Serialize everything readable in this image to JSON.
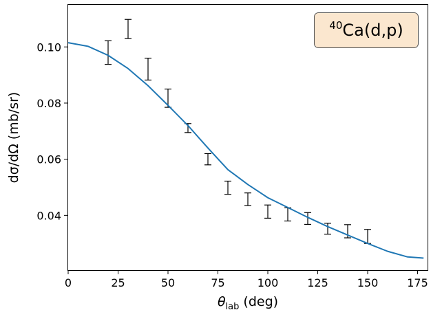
{
  "chart_data": {
    "type": "scatter",
    "xlabel": {
      "symbol": "θ",
      "sub": "lab",
      "unit": "(deg)"
    },
    "ylabel": "dσ/dΩ (mb/sr)",
    "xlim": [
      0,
      180
    ],
    "ylim": [
      0.0205,
      0.115
    ],
    "x_ticks": [
      0,
      25,
      50,
      75,
      100,
      125,
      150,
      175
    ],
    "y_ticks": [
      0.04,
      0.06,
      0.08,
      0.1
    ],
    "y_tick_labels": [
      "0.04",
      "0.06",
      "0.08",
      "0.10"
    ],
    "grid": false,
    "annotation": {
      "sup": "40",
      "text": "Ca(d,p)",
      "position": "top-right",
      "facecolor": "#fbe7cf"
    },
    "series": [
      {
        "kind": "errorbar",
        "color": "#000000",
        "points": [
          {
            "x": 20,
            "low": 0.0938,
            "high": 0.1022
          },
          {
            "x": 30,
            "low": 0.103,
            "high": 0.1098
          },
          {
            "x": 40,
            "low": 0.0882,
            "high": 0.096
          },
          {
            "x": 50,
            "low": 0.0785,
            "high": 0.085
          },
          {
            "x": 60,
            "low": 0.0695,
            "high": 0.0727
          },
          {
            "x": 70,
            "low": 0.058,
            "high": 0.062
          },
          {
            "x": 80,
            "low": 0.0475,
            "high": 0.0522
          },
          {
            "x": 90,
            "low": 0.0435,
            "high": 0.048
          },
          {
            "x": 100,
            "low": 0.039,
            "high": 0.0437
          },
          {
            "x": 110,
            "low": 0.038,
            "high": 0.0427
          },
          {
            "x": 120,
            "low": 0.0368,
            "high": 0.041
          },
          {
            "x": 130,
            "low": 0.0333,
            "high": 0.0372
          },
          {
            "x": 140,
            "low": 0.032,
            "high": 0.0367
          },
          {
            "x": 150,
            "low": 0.03,
            "high": 0.035
          }
        ]
      },
      {
        "kind": "line",
        "color": "#1f77b4",
        "x": [
          0,
          10,
          20,
          30,
          40,
          50,
          60,
          70,
          80,
          90,
          100,
          110,
          120,
          130,
          140,
          150,
          160,
          170,
          178
        ],
        "y": [
          0.1015,
          0.1002,
          0.097,
          0.0923,
          0.0862,
          0.0792,
          0.072,
          0.064,
          0.0563,
          0.051,
          0.0463,
          0.0428,
          0.0393,
          0.036,
          0.033,
          0.03,
          0.0272,
          0.0252,
          0.0248
        ]
      }
    ]
  }
}
